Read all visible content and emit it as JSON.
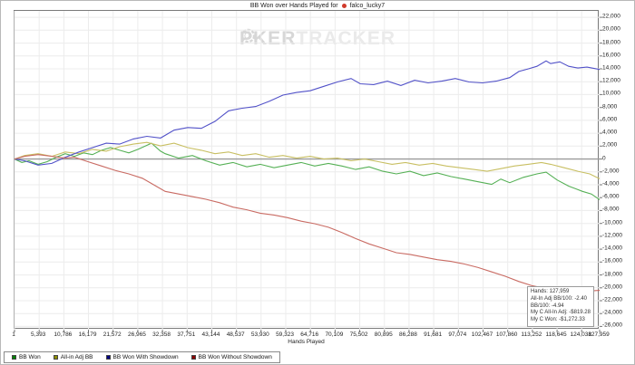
{
  "header": {
    "title_prefix": "BB Won over Hands Played for",
    "player": "falco_lucky7"
  },
  "watermark": {
    "part1": "P",
    "part2": "KER",
    "part3": "TRACKER"
  },
  "stats_box": {
    "lines": [
      "Hands: 127,959",
      "All-In Adj BB/100: -2.40",
      "BB/100: -4.94",
      "My C All-In Adj: -$819.28",
      "My C Won: -$1,272.33"
    ]
  },
  "chart_data": {
    "type": "line",
    "title": "BB Won over Hands Played for falco_lucky7",
    "xlabel": "Hands Played",
    "ylabel": "",
    "grid": true,
    "legend_position": "bottom-left",
    "xlim": [
      1,
      127959
    ],
    "ylim": [
      -26500,
      23000
    ],
    "x_ticks": [
      1,
      5393,
      10786,
      16179,
      21572,
      26965,
      32358,
      37751,
      43144,
      48537,
      53930,
      59323,
      64716,
      70109,
      75502,
      80895,
      86288,
      91681,
      97074,
      102467,
      107860,
      113252,
      118645,
      124038,
      127959
    ],
    "y_ticks": [
      22000,
      20000,
      18000,
      16000,
      14000,
      12000,
      10000,
      8000,
      6000,
      4000,
      2000,
      0,
      -2000,
      -4000,
      -6000,
      -8000,
      -10000,
      -12000,
      -14000,
      -16000,
      -18000,
      -20000,
      -22000,
      -24000,
      -26000
    ],
    "zero_line_color": "#9a9a9a",
    "grid_color": "#ececec",
    "series": [
      {
        "name": "BB Won",
        "color": "#55b055",
        "legend_color": "#008000",
        "points": [
          [
            1,
            0
          ],
          [
            1600,
            -540
          ],
          [
            3150,
            -270
          ],
          [
            5150,
            -820
          ],
          [
            7150,
            -410
          ],
          [
            9100,
            270
          ],
          [
            11100,
            820
          ],
          [
            13100,
            410
          ],
          [
            15100,
            950
          ],
          [
            17050,
            680
          ],
          [
            19050,
            1360
          ],
          [
            21000,
            1770
          ],
          [
            23000,
            1360
          ],
          [
            25000,
            950
          ],
          [
            27000,
            1500
          ],
          [
            29950,
            2450
          ],
          [
            31950,
            1220
          ],
          [
            32950,
            820
          ],
          [
            35900,
            140
          ],
          [
            38900,
            540
          ],
          [
            41850,
            -270
          ],
          [
            44850,
            -950
          ],
          [
            47800,
            -540
          ],
          [
            50800,
            -1220
          ],
          [
            53750,
            -820
          ],
          [
            56750,
            -1360
          ],
          [
            59700,
            -950
          ],
          [
            62700,
            -540
          ],
          [
            65650,
            -1090
          ],
          [
            68650,
            -680
          ],
          [
            71600,
            -1090
          ],
          [
            74600,
            -1630
          ],
          [
            77550,
            -1220
          ],
          [
            80550,
            -1900
          ],
          [
            83500,
            -2310
          ],
          [
            86500,
            -1900
          ],
          [
            89450,
            -2580
          ],
          [
            92450,
            -2170
          ],
          [
            95400,
            -2720
          ],
          [
            98400,
            -3120
          ],
          [
            101400,
            -3530
          ],
          [
            104350,
            -3940
          ],
          [
            106350,
            -3120
          ],
          [
            108300,
            -3670
          ],
          [
            111300,
            -2850
          ],
          [
            114250,
            -2310
          ],
          [
            116250,
            -2040
          ],
          [
            118650,
            -3260
          ],
          [
            121200,
            -4210
          ],
          [
            124200,
            -5030
          ],
          [
            126150,
            -5430
          ],
          [
            127959,
            -6300
          ]
        ]
      },
      {
        "name": "All-in Adj BB",
        "color": "#c8bf62",
        "legend_color": "#8d8d00",
        "points": [
          [
            1,
            0
          ],
          [
            2200,
            540
          ],
          [
            5150,
            820
          ],
          [
            8150,
            410
          ],
          [
            11100,
            1090
          ],
          [
            14100,
            820
          ],
          [
            17050,
            1500
          ],
          [
            20050,
            1220
          ],
          [
            23000,
            1900
          ],
          [
            26000,
            2310
          ],
          [
            28950,
            2580
          ],
          [
            31950,
            2040
          ],
          [
            34900,
            2450
          ],
          [
            37900,
            1770
          ],
          [
            40850,
            1360
          ],
          [
            43850,
            820
          ],
          [
            46800,
            1090
          ],
          [
            49800,
            540
          ],
          [
            52750,
            820
          ],
          [
            55750,
            270
          ],
          [
            58700,
            540
          ],
          [
            61700,
            140
          ],
          [
            64650,
            410
          ],
          [
            67650,
            0
          ],
          [
            70600,
            140
          ],
          [
            73600,
            -270
          ],
          [
            76600,
            0
          ],
          [
            79550,
            -410
          ],
          [
            82550,
            -820
          ],
          [
            85500,
            -540
          ],
          [
            88500,
            -950
          ],
          [
            91450,
            -680
          ],
          [
            94450,
            -1090
          ],
          [
            97400,
            -1360
          ],
          [
            100400,
            -1630
          ],
          [
            103350,
            -1900
          ],
          [
            106350,
            -1490
          ],
          [
            109300,
            -1090
          ],
          [
            112300,
            -820
          ],
          [
            115250,
            -540
          ],
          [
            117250,
            -820
          ],
          [
            120200,
            -1360
          ],
          [
            123200,
            -1900
          ],
          [
            125800,
            -2310
          ],
          [
            127959,
            -3070
          ]
        ]
      },
      {
        "name": "BB Won With Showdown",
        "color": "#5151c8",
        "legend_color": "#000080",
        "points": [
          [
            1,
            0
          ],
          [
            2200,
            -270
          ],
          [
            5150,
            -950
          ],
          [
            8150,
            -680
          ],
          [
            11100,
            270
          ],
          [
            14100,
            1090
          ],
          [
            17050,
            1770
          ],
          [
            20050,
            2450
          ],
          [
            23000,
            2310
          ],
          [
            26000,
            3120
          ],
          [
            28950,
            3530
          ],
          [
            31950,
            3260
          ],
          [
            34900,
            4480
          ],
          [
            37900,
            4890
          ],
          [
            40850,
            4760
          ],
          [
            43850,
            5840
          ],
          [
            46800,
            7470
          ],
          [
            49800,
            7880
          ],
          [
            52750,
            8150
          ],
          [
            55750,
            8970
          ],
          [
            58700,
            9920
          ],
          [
            61700,
            10330
          ],
          [
            64650,
            10600
          ],
          [
            67650,
            11280
          ],
          [
            70600,
            11960
          ],
          [
            73600,
            12500
          ],
          [
            75600,
            11680
          ],
          [
            78550,
            11550
          ],
          [
            81550,
            12090
          ],
          [
            84500,
            11410
          ],
          [
            87500,
            12230
          ],
          [
            90450,
            11820
          ],
          [
            93450,
            12090
          ],
          [
            96400,
            12500
          ],
          [
            99400,
            11960
          ],
          [
            102350,
            11820
          ],
          [
            105350,
            12090
          ],
          [
            108300,
            12640
          ],
          [
            110300,
            13590
          ],
          [
            112300,
            13990
          ],
          [
            114250,
            14400
          ],
          [
            116250,
            15220
          ],
          [
            117250,
            14810
          ],
          [
            119250,
            15080
          ],
          [
            121200,
            14400
          ],
          [
            123200,
            14130
          ],
          [
            125200,
            14270
          ],
          [
            127959,
            13900
          ]
        ]
      },
      {
        "name": "BB Won Without Showdown",
        "color": "#c96b63",
        "legend_color": "#8b0000",
        "points": [
          [
            1,
            0
          ],
          [
            2200,
            410
          ],
          [
            5150,
            680
          ],
          [
            8150,
            410
          ],
          [
            11100,
            140
          ],
          [
            13100,
            270
          ],
          [
            16050,
            -410
          ],
          [
            19050,
            -1090
          ],
          [
            22000,
            -1770
          ],
          [
            25000,
            -2310
          ],
          [
            27950,
            -2990
          ],
          [
            30950,
            -4210
          ],
          [
            32950,
            -5030
          ],
          [
            35900,
            -5430
          ],
          [
            38900,
            -5840
          ],
          [
            41850,
            -6250
          ],
          [
            44850,
            -6790
          ],
          [
            47800,
            -7470
          ],
          [
            50800,
            -7880
          ],
          [
            53750,
            -8420
          ],
          [
            56750,
            -8700
          ],
          [
            59700,
            -9100
          ],
          [
            62700,
            -9650
          ],
          [
            65650,
            -10050
          ],
          [
            68650,
            -10600
          ],
          [
            71600,
            -11410
          ],
          [
            74600,
            -12360
          ],
          [
            77550,
            -13180
          ],
          [
            80550,
            -13860
          ],
          [
            83500,
            -14540
          ],
          [
            86500,
            -14810
          ],
          [
            89450,
            -15220
          ],
          [
            92450,
            -15630
          ],
          [
            95400,
            -15900
          ],
          [
            98400,
            -16300
          ],
          [
            101400,
            -16850
          ],
          [
            104350,
            -17530
          ],
          [
            107300,
            -18210
          ],
          [
            110300,
            -19020
          ],
          [
            113300,
            -19700
          ],
          [
            116250,
            -20110
          ],
          [
            119250,
            -20510
          ],
          [
            122200,
            -20650
          ],
          [
            125200,
            -20510
          ],
          [
            127959,
            -20400
          ]
        ]
      }
    ]
  }
}
